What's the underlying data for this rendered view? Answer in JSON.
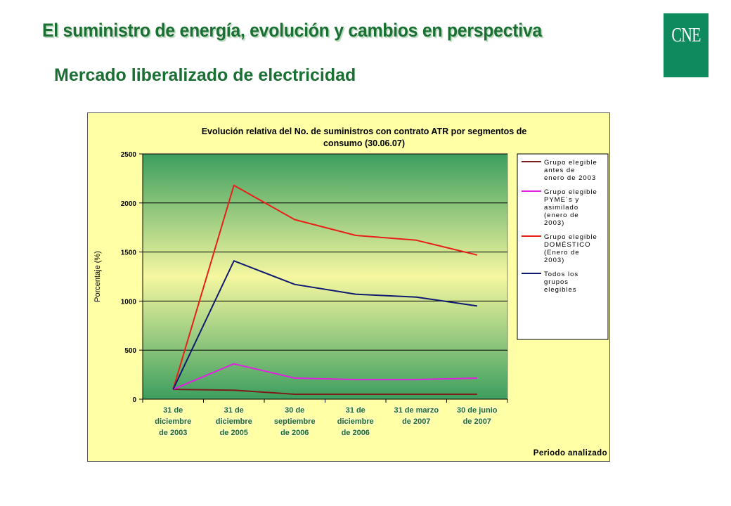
{
  "slide": {
    "title": "El suministro de energía, evolución y cambios en perspectiva",
    "subtitle": "Mercado liberalizado de electricidad",
    "logo_text": "CNE"
  },
  "colors": {
    "title_green": "#1a6f33",
    "logo_green": "#0f8a5f",
    "chart_background": "#ffffa6",
    "plot_gradient_top": "#3c9e5f",
    "plot_gradient_mid": "#f5f7a0",
    "plot_gradient_bottom": "#3c9e5f"
  },
  "chart_data": {
    "type": "line",
    "title": "Evolución relativa del No. de suministros con contrato ATR por segmentos de consumo (30.06.07)",
    "title_lines": [
      "Evolución relativa del No. de suministros con contrato ATR por segmentos de",
      "consumo (30.06.07)"
    ],
    "xlabel": "Periodo analizado",
    "ylabel": "Porcentaje (%)",
    "ylim": [
      0,
      2500
    ],
    "yticks": [
      0,
      500,
      1000,
      1500,
      2000,
      2500
    ],
    "grid": true,
    "legend_position": "right",
    "categories": [
      "31 de diciembre de 2003",
      "31 de diciembre de 2005",
      "30 de septiembre de 2006",
      "31 de diciembre de 2006",
      "31 de marzo de 2007",
      "30 de junio de 2007"
    ],
    "category_lines": [
      [
        "31 de",
        "diciembre",
        "de 2003"
      ],
      [
        "31 de",
        "diciembre",
        "de 2005"
      ],
      [
        "30 de",
        "septiembre",
        "de 2006"
      ],
      [
        "31 de",
        "diciembre",
        "de 2006"
      ],
      [
        "31 de marzo",
        "de 2007"
      ],
      [
        "30 de junio",
        "de 2007"
      ]
    ],
    "series": [
      {
        "name": "Grupo elegible antes de enero de 2003",
        "legend_lines": [
          "Grupo elegible",
          "antes de",
          "enero de 2003"
        ],
        "color": "#7b1c1c",
        "values": [
          100,
          92,
          50,
          50,
          50,
          50
        ]
      },
      {
        "name": "Grupo elegible PYME's y asimilado (enero de 2003)",
        "legend_lines": [
          "Grupo elegible",
          "PYME´s y",
          "asimilado",
          "(enero de",
          "2003)"
        ],
        "color": "#e020e0",
        "values": [
          100,
          360,
          215,
          200,
          200,
          215
        ]
      },
      {
        "name": "Grupo elegible DOMÉSTICO (Enero de 2003)",
        "legend_lines": [
          "Grupo elegible",
          "DOMÉSTICO",
          "(Enero de",
          "2003)"
        ],
        "color": "#e8201a",
        "values": [
          100,
          2180,
          1830,
          1670,
          1620,
          1470
        ]
      },
      {
        "name": "Todos los grupos elegibles",
        "legend_lines": [
          "Todos los",
          "grupos",
          "elegibles"
        ],
        "color": "#101a70",
        "values": [
          100,
          1410,
          1170,
          1070,
          1040,
          950
        ]
      }
    ]
  }
}
